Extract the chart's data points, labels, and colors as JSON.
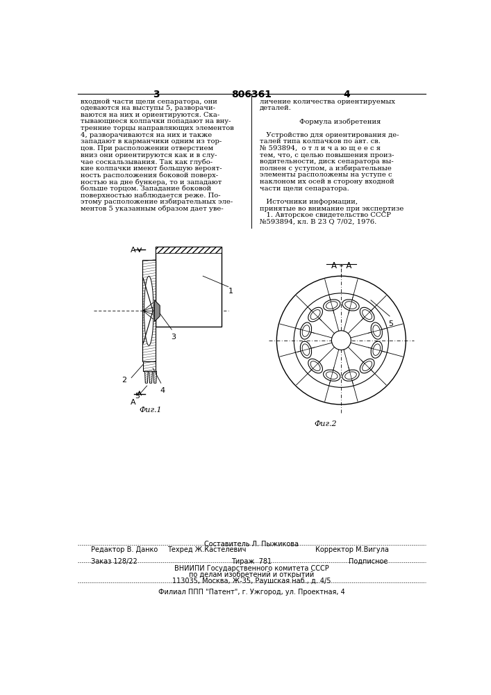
{
  "page_width": 7.07,
  "page_height": 10.0,
  "bg_color": "#ffffff",
  "header_page_left": "3",
  "header_patent": "806361",
  "header_page_right": "4",
  "col1_text": [
    "входной части щели сепаратора, они",
    "одеваются на выступы 5, разворачи-",
    "ваются на них и ориентируются. Ска-",
    "тывающиеся колпачки попадают на вну-",
    "тренние торцы направляющих элементов",
    "4, разворачиваются на них и также",
    "западают в карманчики одним из тор-",
    "цов. При расположении отверстием",
    "вниз они ориентируются как и в слу-",
    "чае соскальзывания. Так как глубо-",
    "кие колпачки имеют большую вероят-",
    "ность расположения боковой поверх-",
    "ностью на дне бункера, то и западают",
    "больше торцом. Западание боковой",
    "поверхностью наблюдается реже. По-",
    "этому расположение избирательных эле-",
    "ментов 5 указанным образом дает уве-"
  ],
  "col2_text": [
    "личение количества ориентируемых",
    "деталей.",
    "",
    "Формула изобретения",
    "",
    "   Устройство для ориентирования де-",
    "талей типа колпачков по авт. св.",
    "№ 593894,  о т л и ч а ю щ е е с я",
    "тем, что, с целью повышения произ-",
    "водительности, диск сепаратора вы-",
    "полнен с уступом, а избирательные",
    "элементы расположены на уступе с",
    "наклоном их осей в сторону входной",
    "части щели сепаратора.",
    "",
    "   Источники информации,",
    "принятые во внимание при экспертизе",
    "   1. Авторское свидетельство СССР",
    "№593894, кл. В 23 Q 7/02, 1976."
  ],
  "fig1_label": "Фиг.1",
  "fig2_label": "Фиг.2",
  "fig2_section_label": "А – А",
  "footer_editor": "Редактор В. Данко",
  "footer_composer_title": "Составитель Л. Пыжикова",
  "footer_techred": "Техред Ж.Кастелевич",
  "footer_corrector": "Корректор М.Вигула",
  "footer_order": "Заказ 128/22",
  "footer_tirazh": "Тираж  781",
  "footer_podpisnoe": "Подписное",
  "footer_vnipi": "ВНИИПИ Государственного комитета СССР",
  "footer_vnipi2": "по делам изобретений и открытий",
  "footer_address": "113035, Москва, Ж-35, Раушская наб., д. 4/5",
  "footer_filial": "Филиал ППП \"Патент\", г. Ужгород, ул. Проектная, 4"
}
